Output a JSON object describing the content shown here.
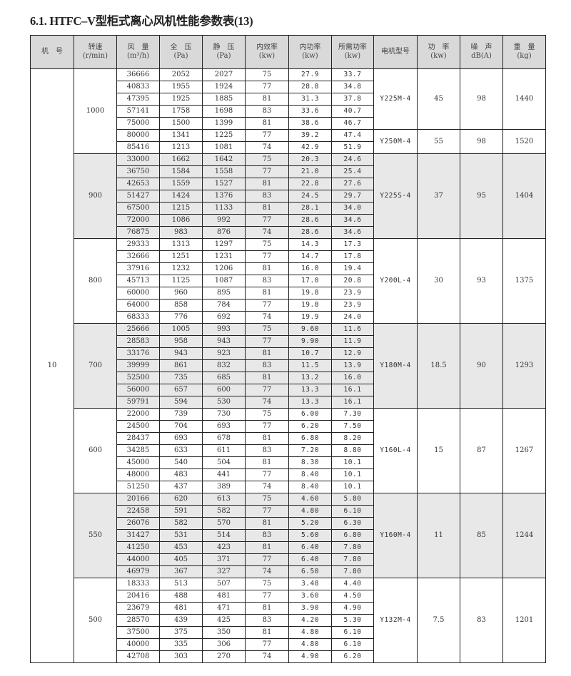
{
  "title": "6.1. HTFC–V型柜式离心风机性能参数表(13)",
  "headers": [
    [
      "机　号",
      ""
    ],
    [
      "转速",
      "(r/min)"
    ],
    [
      "风　量",
      "(m³/h)"
    ],
    [
      "全　压",
      "(Pa)"
    ],
    [
      "静　压",
      "(Pa)"
    ],
    [
      "内效率",
      "(kw)"
    ],
    [
      "内功率",
      "(kw)"
    ],
    [
      "所需功率",
      "(kw)"
    ],
    [
      "电机型号",
      ""
    ],
    [
      "功　率",
      "(kw)"
    ],
    [
      "噪　声",
      "dB(A)"
    ],
    [
      "重　量",
      "(kg)"
    ]
  ],
  "machine_no": "10",
  "shade_color": "#e8e8e8",
  "groups": [
    {
      "speed": "1000",
      "shaded": false,
      "rows": [
        [
          "36666",
          "2052",
          "2027",
          "75",
          "27.9",
          "33.7"
        ],
        [
          "40833",
          "1955",
          "1924",
          "77",
          "28.8",
          "34.8"
        ],
        [
          "47395",
          "1925",
          "1885",
          "81",
          "31.3",
          "37.8"
        ],
        [
          "57141",
          "1758",
          "1698",
          "83",
          "33.6",
          "40.7"
        ],
        [
          "75000",
          "1500",
          "1399",
          "81",
          "38.6",
          "46.7"
        ],
        [
          "80000",
          "1341",
          "1225",
          "77",
          "39.2",
          "47.4"
        ],
        [
          "85416",
          "1213",
          "1081",
          "74",
          "42.9",
          "51.9"
        ]
      ],
      "motors": [
        {
          "model": "Y225M-4",
          "power": "45",
          "noise": "98",
          "weight": "1440",
          "span": 5
        },
        {
          "model": "Y250M-4",
          "power": "55",
          "noise": "98",
          "weight": "1520",
          "span": 2
        }
      ]
    },
    {
      "speed": "900",
      "shaded": true,
      "rows": [
        [
          "33000",
          "1662",
          "1642",
          "75",
          "20.3",
          "24.6"
        ],
        [
          "36750",
          "1584",
          "1558",
          "77",
          "21.0",
          "25.4"
        ],
        [
          "42653",
          "1559",
          "1527",
          "81",
          "22.8",
          "27.6"
        ],
        [
          "51427",
          "1424",
          "1376",
          "83",
          "24.5",
          "29.7"
        ],
        [
          "67500",
          "1215",
          "1133",
          "81",
          "28.1",
          "34.0"
        ],
        [
          "72000",
          "1086",
          "992",
          "77",
          "28.6",
          "34.6"
        ],
        [
          "76875",
          "983",
          "876",
          "74",
          "28.6",
          "34.6"
        ]
      ],
      "motors": [
        {
          "model": "Y225S-4",
          "power": "37",
          "noise": "95",
          "weight": "1404",
          "span": 7
        }
      ]
    },
    {
      "speed": "800",
      "shaded": false,
      "rows": [
        [
          "29333",
          "1313",
          "1297",
          "75",
          "14.3",
          "17.3"
        ],
        [
          "32666",
          "1251",
          "1231",
          "77",
          "14.7",
          "17.8"
        ],
        [
          "37916",
          "1232",
          "1206",
          "81",
          "16.0",
          "19.4"
        ],
        [
          "45713",
          "1125",
          "1087",
          "83",
          "17.0",
          "20.8"
        ],
        [
          "60000",
          "960",
          "895",
          "81",
          "19.8",
          "23.9"
        ],
        [
          "64000",
          "858",
          "784",
          "77",
          "19.8",
          "23.9"
        ],
        [
          "68333",
          "776",
          "692",
          "74",
          "19.9",
          "24.0"
        ]
      ],
      "motors": [
        {
          "model": "Y200L-4",
          "power": "30",
          "noise": "93",
          "weight": "1375",
          "span": 7
        }
      ]
    },
    {
      "speed": "700",
      "shaded": true,
      "rows": [
        [
          "25666",
          "1005",
          "993",
          "75",
          "9.60",
          "11.6"
        ],
        [
          "28583",
          "958",
          "943",
          "77",
          "9.90",
          "11.9"
        ],
        [
          "33176",
          "943",
          "923",
          "81",
          "10.7",
          "12.9"
        ],
        [
          "39999",
          "861",
          "832",
          "83",
          "11.5",
          "13.9"
        ],
        [
          "52500",
          "735",
          "685",
          "81",
          "13.2",
          "16.0"
        ],
        [
          "56000",
          "657",
          "600",
          "77",
          "13.3",
          "16.1"
        ],
        [
          "59791",
          "594",
          "530",
          "74",
          "13.3",
          "16.1"
        ]
      ],
      "motors": [
        {
          "model": "Y180M-4",
          "power": "18.5",
          "noise": "90",
          "weight": "1293",
          "span": 7
        }
      ]
    },
    {
      "speed": "600",
      "shaded": false,
      "rows": [
        [
          "22000",
          "739",
          "730",
          "75",
          "6.00",
          "7.30"
        ],
        [
          "24500",
          "704",
          "693",
          "77",
          "6.20",
          "7.50"
        ],
        [
          "28437",
          "693",
          "678",
          "81",
          "6.80",
          "8.20"
        ],
        [
          "34285",
          "633",
          "611",
          "83",
          "7.20",
          "8.80"
        ],
        [
          "45000",
          "540",
          "504",
          "81",
          "8.30",
          "10.1"
        ],
        [
          "48000",
          "483",
          "441",
          "77",
          "8.40",
          "10.1"
        ],
        [
          "51250",
          "437",
          "389",
          "74",
          "8.40",
          "10.1"
        ]
      ],
      "motors": [
        {
          "model": "Y160L-4",
          "power": "15",
          "noise": "87",
          "weight": "1267",
          "span": 7
        }
      ]
    },
    {
      "speed": "550",
      "shaded": true,
      "rows": [
        [
          "20166",
          "620",
          "613",
          "75",
          "4.60",
          "5.80"
        ],
        [
          "22458",
          "591",
          "582",
          "77",
          "4.80",
          "6.10"
        ],
        [
          "26076",
          "582",
          "570",
          "81",
          "5.20",
          "6.30"
        ],
        [
          "31427",
          "531",
          "514",
          "83",
          "5.60",
          "6.80"
        ],
        [
          "41250",
          "453",
          "423",
          "81",
          "6.40",
          "7.80"
        ],
        [
          "44000",
          "405",
          "371",
          "77",
          "6.40",
          "7.80"
        ],
        [
          "46979",
          "367",
          "327",
          "74",
          "6.50",
          "7.80"
        ]
      ],
      "motors": [
        {
          "model": "Y160M-4",
          "power": "11",
          "noise": "85",
          "weight": "1244",
          "span": 7
        }
      ]
    },
    {
      "speed": "500",
      "shaded": false,
      "rows": [
        [
          "18333",
          "513",
          "507",
          "75",
          "3.48",
          "4.40"
        ],
        [
          "20416",
          "488",
          "481",
          "77",
          "3.60",
          "4.50"
        ],
        [
          "23679",
          "481",
          "471",
          "81",
          "3.90",
          "4.90"
        ],
        [
          "28570",
          "439",
          "425",
          "83",
          "4.20",
          "5.30"
        ],
        [
          "37500",
          "375",
          "350",
          "81",
          "4.80",
          "6.10"
        ],
        [
          "40000",
          "335",
          "306",
          "77",
          "4.80",
          "6.10"
        ],
        [
          "42708",
          "303",
          "270",
          "74",
          "4.90",
          "6.20"
        ]
      ],
      "motors": [
        {
          "model": "Y132M-4",
          "power": "7.5",
          "noise": "83",
          "weight": "1201",
          "span": 7
        }
      ]
    }
  ]
}
